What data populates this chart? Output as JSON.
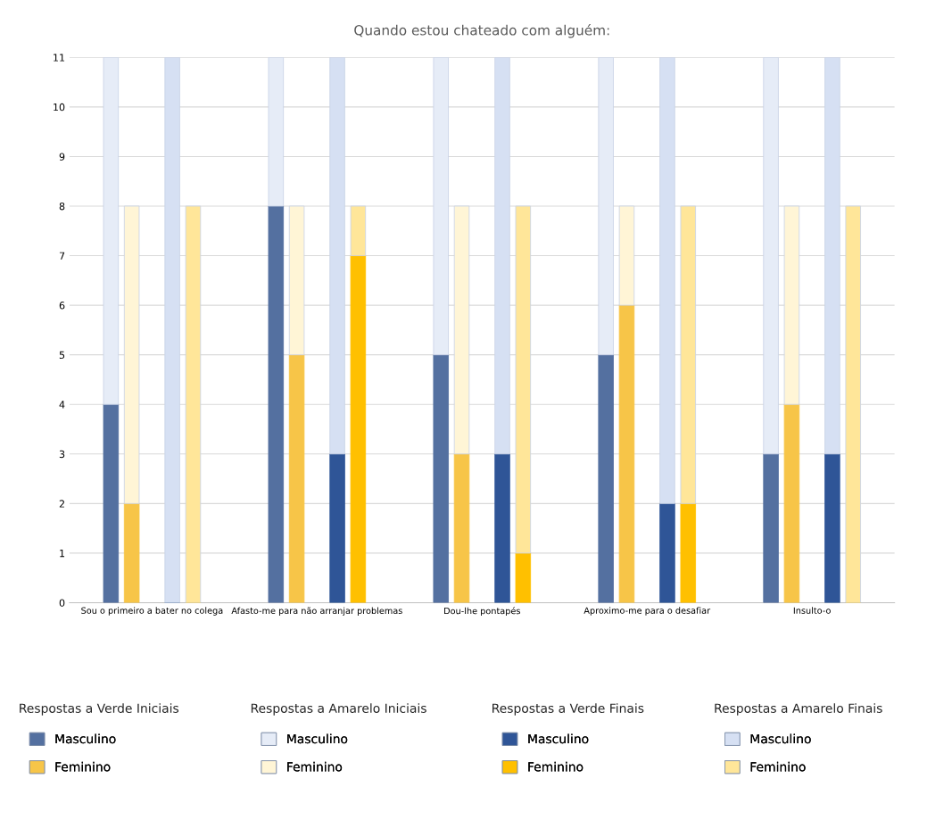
{
  "chart_data": {
    "type": "bar",
    "title": "Quando estou chateado com alguém:",
    "categories": [
      "Sou o primeiro a bater no colega",
      "Afasto-me para não arranjar problemas",
      "Dou-lhe pontapés",
      "Aproximo-me para o desafiar",
      "Insulto-o"
    ],
    "series": [
      {
        "name": "Masculino",
        "color": "#5470a0",
        "values": [
          4,
          8,
          5,
          5,
          3
        ],
        "base": [
          0,
          0,
          0,
          0,
          0
        ]
      },
      {
        "name": "Feminino",
        "color": "#f7c548",
        "values": [
          2,
          5,
          3,
          6,
          4
        ],
        "base": [
          0,
          0,
          0,
          0,
          0
        ]
      },
      {
        "name": "Masculino",
        "color": "#e6ecf7",
        "values": [
          7,
          3,
          6,
          6,
          8
        ],
        "base": [
          4,
          8,
          5,
          5,
          3
        ]
      },
      {
        "name": "Feminino",
        "color": "#fff5d6",
        "values": [
          6,
          3,
          5,
          2,
          4
        ],
        "base": [
          2,
          5,
          3,
          6,
          4
        ]
      },
      {
        "name": "Masculino",
        "color": "#2f5597",
        "values": [
          0,
          3,
          3,
          2,
          3
        ],
        "base": [
          0,
          0,
          0,
          0,
          0
        ]
      },
      {
        "name": "Feminino",
        "color": "#ffc000",
        "values": [
          0,
          7,
          1,
          2,
          0
        ],
        "base": [
          0,
          0,
          0,
          0,
          0
        ]
      },
      {
        "name": "Masculino",
        "color": "#d6e0f3",
        "values": [
          11,
          8,
          8,
          9,
          8
        ],
        "base": [
          0,
          3,
          3,
          2,
          3
        ]
      },
      {
        "name": "Feminino",
        "color": "#ffe699",
        "values": [
          8,
          1,
          7,
          6,
          8
        ],
        "base": [
          0,
          7,
          1,
          2,
          0
        ]
      }
    ],
    "annotations": [
      "Respostas a Verde Iniciais",
      "Respostas a Amarelo Iniciais",
      "Respostas a Verde Finais",
      "Respostas a Amarelo Finais"
    ],
    "ylim": [
      0,
      11
    ],
    "yticks": [
      0,
      1,
      2,
      3,
      4,
      5,
      6,
      7,
      8,
      9,
      10,
      11
    ],
    "grid": "y",
    "legend": "bottom"
  }
}
